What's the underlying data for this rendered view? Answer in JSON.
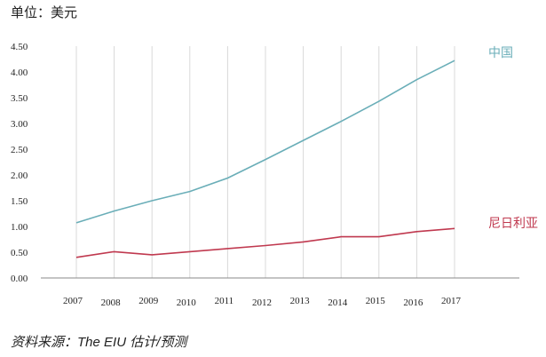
{
  "unit_label": "单位：美元",
  "source_label": "资料来源：The EIU 估计/预测",
  "colors": {
    "china": "#6aaeb8",
    "nigeria": "#c0394f",
    "grid": "#d8d8d8",
    "axis": "#888888"
  },
  "chart_data": {
    "type": "line",
    "title": "",
    "xlabel": "",
    "ylabel": "单位：美元",
    "ylim": [
      0,
      4.5
    ],
    "yticks": [
      "0.00",
      "0.50",
      "1.00",
      "1.50",
      "2.00",
      "2.50",
      "3.00",
      "3.50",
      "4.00",
      "4.50"
    ],
    "categories": [
      "2007",
      "2008",
      "2009",
      "2010",
      "2011",
      "2012",
      "2013",
      "2014",
      "2015",
      "2016",
      "2017"
    ],
    "series": [
      {
        "name": "中国",
        "values": [
          1.07,
          1.3,
          1.5,
          1.68,
          1.94,
          2.3,
          2.67,
          3.04,
          3.43,
          3.85,
          4.22
        ]
      },
      {
        "name": "尼日利亚",
        "values": [
          0.4,
          0.51,
          0.45,
          0.51,
          0.57,
          0.63,
          0.7,
          0.8,
          0.8,
          0.9,
          0.96
        ]
      }
    ]
  }
}
